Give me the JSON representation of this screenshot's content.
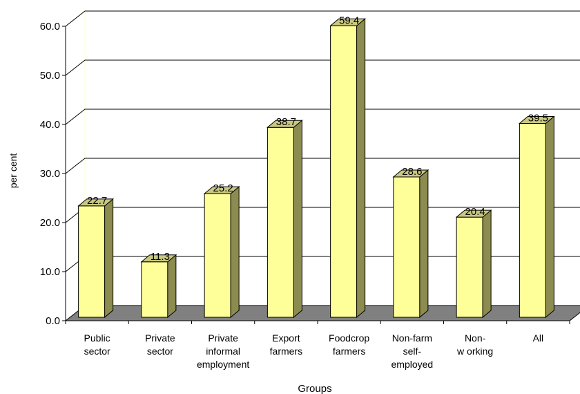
{
  "chart_data": {
    "type": "bar",
    "title": "",
    "xlabel": "Groups",
    "ylabel": "per cent",
    "ylim": [
      0,
      60
    ],
    "yticks": [
      "0.0",
      "10.0",
      "20.0",
      "30.0",
      "40.0",
      "50.0",
      "60.0"
    ],
    "categories": [
      [
        "Public",
        "sector"
      ],
      [
        "Private",
        "sector"
      ],
      [
        "Private",
        "informal",
        "employment"
      ],
      [
        "Export",
        "farmers"
      ],
      [
        "Foodcrop",
        "farmers"
      ],
      [
        "Non-farm",
        "self-",
        "employed"
      ],
      [
        "Non-",
        "w orking"
      ],
      [
        "All"
      ]
    ],
    "values": [
      22.7,
      11.3,
      25.2,
      38.7,
      59.4,
      28.6,
      20.4,
      39.5
    ],
    "value_labels": [
      "22.7",
      "11.3",
      "25.2",
      "38.7",
      "59.4",
      "28.6",
      "20.4",
      "39.5"
    ],
    "grid": true,
    "legend": "none",
    "colors": {
      "bar_front": "#ffff99",
      "bar_side": "#8c8c50",
      "bar_top": "#c8c880",
      "floor": "#808080",
      "wall_border": "#ffffcc",
      "grid": "#000000"
    }
  }
}
